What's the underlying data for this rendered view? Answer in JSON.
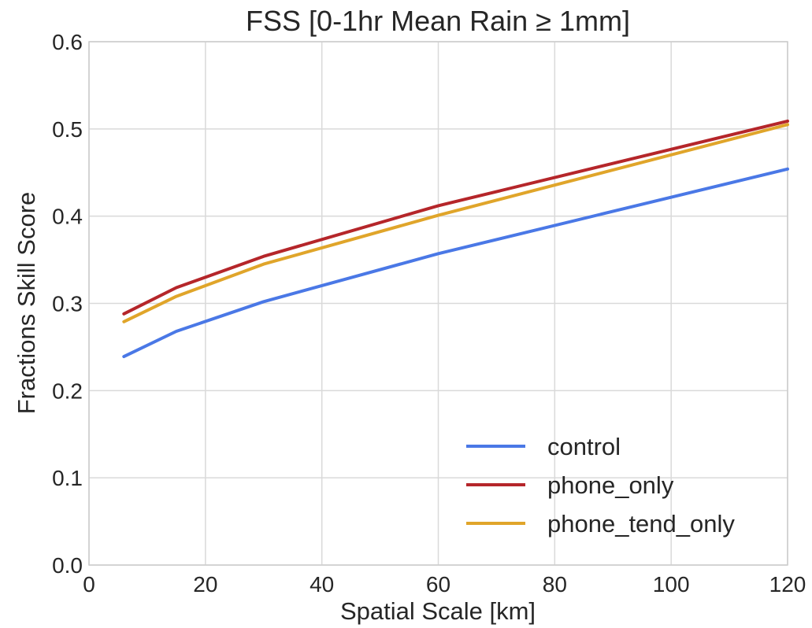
{
  "chart_data": {
    "type": "line",
    "title": "FSS [0-1hr Mean Rain ≥ 1mm]",
    "xlabel": "Spatial Scale [km]",
    "ylabel": "Fractions Skill Score",
    "xlim": [
      0,
      120
    ],
    "ylim": [
      0.0,
      0.6
    ],
    "xticks": [
      0,
      20,
      40,
      60,
      80,
      100,
      120
    ],
    "xtick_labels": [
      "0",
      "20",
      "40",
      "60",
      "80",
      "100",
      "120"
    ],
    "yticks": [
      0.0,
      0.1,
      0.2,
      0.3,
      0.4,
      0.5,
      0.6
    ],
    "ytick_labels": [
      "0.0",
      "0.1",
      "0.2",
      "0.3",
      "0.4",
      "0.5",
      "0.6"
    ],
    "grid": true,
    "legend_position": "lower-right",
    "x": [
      6,
      15,
      30,
      60,
      120
    ],
    "series": [
      {
        "name": "control",
        "color": "#4a78e6",
        "values": [
          0.239,
          0.268,
          0.302,
          0.357,
          0.454
        ]
      },
      {
        "name": "phone_only",
        "color": "#b5262a",
        "values": [
          0.288,
          0.318,
          0.354,
          0.412,
          0.509
        ]
      },
      {
        "name": "phone_tend_only",
        "color": "#e0a52a",
        "values": [
          0.279,
          0.308,
          0.345,
          0.401,
          0.505
        ]
      }
    ]
  }
}
